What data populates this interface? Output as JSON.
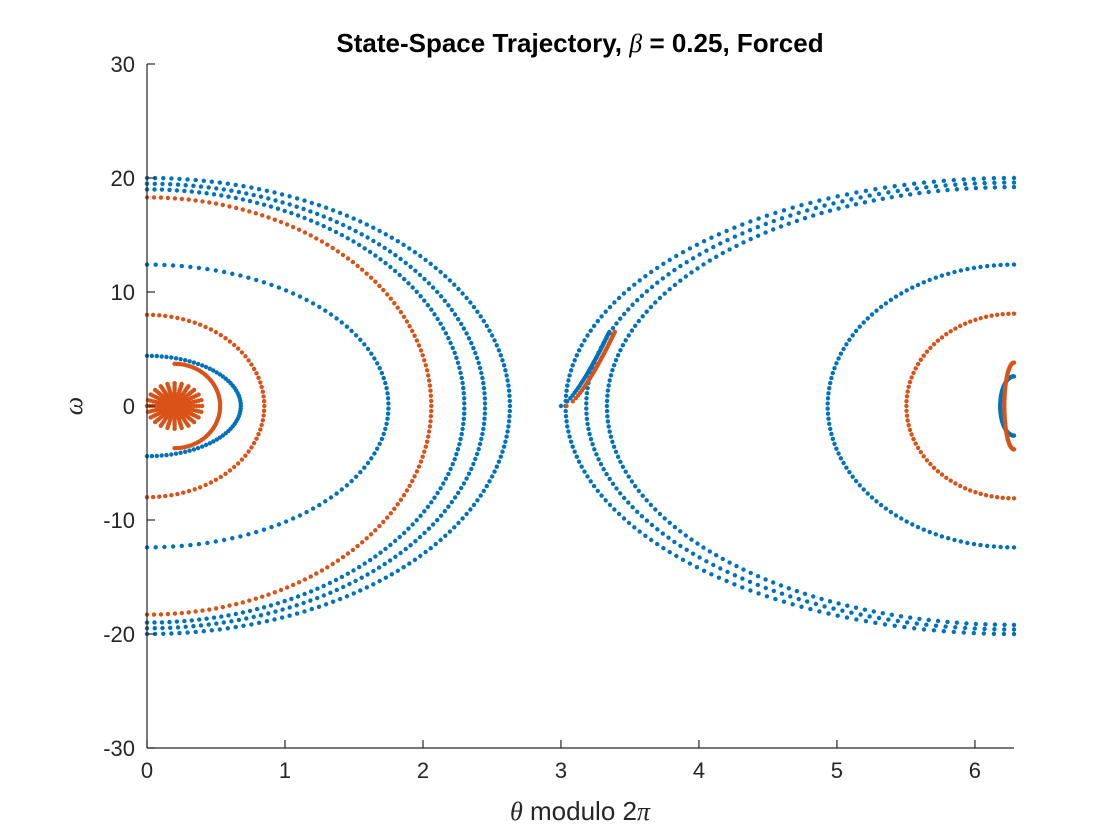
{
  "chart_data": {
    "type": "scatter",
    "title": "State-Space Trajectory, β = 0.25, Forced",
    "title_parts": {
      "prefix": "State-Space Trajectory, ",
      "symbol": "β",
      "suffix": " = 0.25, Forced"
    },
    "xlabel": "θ modulo 2π",
    "xlabel_parts": {
      "symbol": "θ",
      "mid": " modulo 2",
      "symbol2": "π"
    },
    "ylabel": "ω",
    "xlim": [
      0,
      6.2832
    ],
    "ylim": [
      -30,
      30
    ],
    "xticks": [
      "0",
      "1",
      "2",
      "3",
      "4",
      "5",
      "6"
    ],
    "yticks": [
      "-30",
      "-20",
      "-10",
      "0",
      "10",
      "20",
      "30"
    ],
    "grid": false,
    "series": [
      {
        "color": "#0072BD",
        "marker": "dot",
        "description_points": "blue trajectory: decaying oscillation with wraparound at θ = 2π",
        "orbits": [
          {
            "cx": 0.0,
            "a": 2.63,
            "b": 20.0,
            "side": "left"
          },
          {
            "cx": 0.0,
            "a": 2.45,
            "b": 19.5,
            "side": "left"
          },
          {
            "cx": 0.0,
            "a": 2.3,
            "b": 19.0,
            "side": "left"
          },
          {
            "cx": 0.0,
            "a": 1.75,
            "b": 12.4,
            "side": "left"
          },
          {
            "cx": 0.0,
            "a": 0.68,
            "b": 4.4,
            "side": "left"
          },
          {
            "cx": 6.2832,
            "a": 3.25,
            "b": 20.0,
            "side": "right"
          },
          {
            "cx": 6.2832,
            "a": 3.1,
            "b": 19.6,
            "side": "right"
          },
          {
            "cx": 6.2832,
            "a": 2.95,
            "b": 19.2,
            "side": "right"
          },
          {
            "cx": 6.2832,
            "a": 1.35,
            "b": 12.4,
            "side": "right"
          },
          {
            "cx": 6.2832,
            "a": 0.1,
            "b": 2.6,
            "side": "right"
          }
        ],
        "start": {
          "x": 3.0,
          "y": 0.0
        }
      },
      {
        "color": "#D95319",
        "marker": "dot",
        "description_points": "orange trajectory: decaying spiral toward θ ≈ 0.2, ω = 0",
        "orbits": [
          {
            "cx": 0.0,
            "a": 2.06,
            "b": 18.3,
            "side": "left"
          },
          {
            "cx": 0.0,
            "a": 0.85,
            "b": 8.0,
            "side": "left"
          },
          {
            "cx": 0.2,
            "a": 0.33,
            "b": 3.7,
            "side": "left"
          },
          {
            "cx": 6.2832,
            "a": 0.78,
            "b": 8.1,
            "side": "right"
          },
          {
            "cx": 6.2832,
            "a": 0.07,
            "b": 3.8,
            "side": "right"
          }
        ],
        "start": {
          "x": 3.04,
          "y": 0.0
        },
        "equilibrium": {
          "x": 0.2,
          "y": 0.0
        }
      }
    ]
  }
}
